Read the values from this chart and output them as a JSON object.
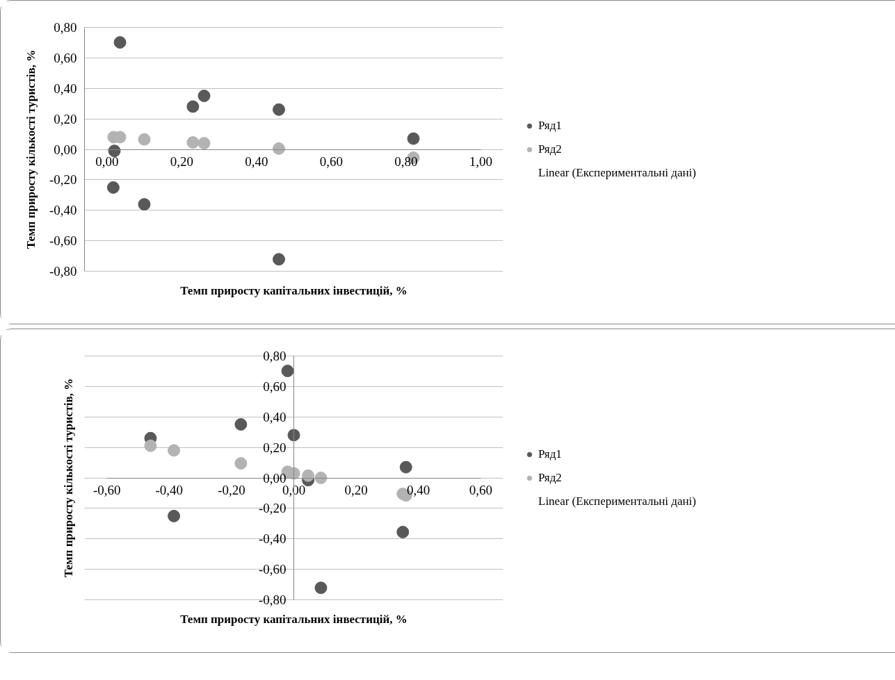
{
  "chart_data": [
    {
      "type": "scatter",
      "xlabel": "Темп приросту капітальних інвестицій, %",
      "ylabel": "Темп приросту кількості туристів, %",
      "xlim": [
        0,
        1
      ],
      "ylim": [
        -0.8,
        0.8
      ],
      "xticks": [
        {
          "value": 0,
          "label": "0,00"
        },
        {
          "value": 0.2,
          "label": "0,20"
        },
        {
          "value": 0.4,
          "label": "0,40"
        },
        {
          "value": 0.6,
          "label": "0,60"
        },
        {
          "value": 0.8,
          "label": "0,80"
        },
        {
          "value": 1,
          "label": "1,00"
        }
      ],
      "yticks": [
        {
          "value": -0.8,
          "label": "-0,80"
        },
        {
          "value": -0.6,
          "label": "-0,60"
        },
        {
          "value": -0.4,
          "label": "-0,40"
        },
        {
          "value": -0.2,
          "label": "-0,20"
        },
        {
          "value": 0,
          "label": "0,00"
        },
        {
          "value": 0.2,
          "label": "0,20"
        },
        {
          "value": 0.4,
          "label": "0,40"
        },
        {
          "value": 0.6,
          "label": "0,60"
        },
        {
          "value": 0.8,
          "label": "0,80"
        }
      ],
      "grid": "y",
      "legend": "right",
      "marker": "circle",
      "annotations": [
        "Linear (Експериментальні дані)"
      ],
      "series": [
        {
          "name": "Ряд1",
          "color": "#595959",
          "x": [
            0.035,
            0.02,
            0.017,
            0.1,
            0.23,
            0.26,
            0.46,
            0.46,
            0.82
          ],
          "values": [
            0.7,
            -0.01,
            -0.25,
            -0.36,
            0.28,
            0.35,
            0.26,
            -0.72,
            0.07
          ]
        },
        {
          "name": "Ряд2",
          "color": "#b3b3b3",
          "x": [
            0.018,
            0.035,
            0.1,
            0.23,
            0.26,
            0.46,
            0.82
          ],
          "values": [
            0.08,
            0.08,
            0.065,
            0.045,
            0.04,
            0.005,
            -0.055
          ]
        }
      ]
    },
    {
      "type": "scatter",
      "xlabel": "Темп приросту капітальних інвестицій, %",
      "ylabel": "Темп приросту кількості туристів, %",
      "xlim": [
        -0.6,
        0.6
      ],
      "ylim": [
        -0.8,
        0.8
      ],
      "xticks": [
        {
          "value": -0.6,
          "label": "-0,60"
        },
        {
          "value": -0.4,
          "label": "-0,40"
        },
        {
          "value": -0.2,
          "label": "-0,20"
        },
        {
          "value": 0,
          "label": "0,00"
        },
        {
          "value": 0.2,
          "label": "0,20"
        },
        {
          "value": 0.4,
          "label": "0,40"
        },
        {
          "value": 0.6,
          "label": "0,60"
        }
      ],
      "yticks": [
        {
          "value": -0.8,
          "label": "-0,80"
        },
        {
          "value": -0.6,
          "label": "-0,60"
        },
        {
          "value": -0.4,
          "label": "-0,40"
        },
        {
          "value": -0.2,
          "label": "-0,20"
        },
        {
          "value": 0,
          "label": "0,00"
        },
        {
          "value": 0.2,
          "label": "0,20"
        },
        {
          "value": 0.4,
          "label": "0,40"
        },
        {
          "value": 0.6,
          "label": "0,60"
        },
        {
          "value": 0.8,
          "label": "0,80"
        }
      ],
      "grid": "y",
      "legend": "right",
      "marker": "circle",
      "annotations": [
        "Linear (Експериментальні дані)"
      ],
      "series": [
        {
          "name": "Ряд1",
          "color": "#595959",
          "x": [
            -0.02,
            0.0,
            -0.17,
            -0.46,
            -0.385,
            0.046,
            0.36,
            0.35,
            0.087
          ],
          "values": [
            0.7,
            0.28,
            0.35,
            0.26,
            -0.25,
            -0.015,
            0.07,
            -0.355,
            -0.72
          ]
        },
        {
          "name": "Ряд2",
          "color": "#b3b3b3",
          "x": [
            -0.46,
            -0.385,
            -0.17,
            -0.02,
            0.0,
            0.046,
            0.087,
            0.35,
            0.36
          ],
          "values": [
            0.21,
            0.18,
            0.095,
            0.04,
            0.03,
            0.015,
            0.0,
            -0.105,
            -0.115
          ]
        }
      ]
    }
  ]
}
